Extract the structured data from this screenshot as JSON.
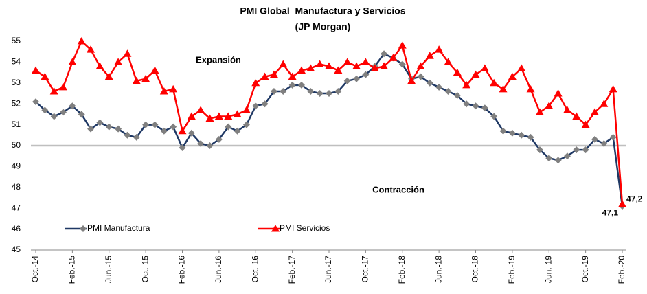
{
  "chart_data": {
    "type": "line",
    "title": "PMI Global  Manufactura y Servicios",
    "subtitle": "(JP Morgan)",
    "annotations": [
      "Expansión",
      "Contracción"
    ],
    "categories": [
      "Oct.-14",
      null,
      null,
      null,
      "Feb.-15",
      null,
      null,
      null,
      "Jun.-15",
      null,
      null,
      null,
      "Oct.-15",
      null,
      null,
      null,
      "Feb.-16",
      null,
      null,
      null,
      "Jun.-16",
      null,
      null,
      null,
      "Oct.-16",
      null,
      null,
      null,
      "Feb.-17",
      null,
      null,
      null,
      "Jun.-17",
      null,
      null,
      null,
      "Oct.-17",
      null,
      null,
      null,
      "Feb.-18",
      null,
      null,
      null,
      "Jun.-18",
      null,
      null,
      null,
      "Oct.-18",
      null,
      null,
      null,
      "Feb.-19",
      null,
      null,
      null,
      "Jun.-19",
      null,
      null,
      null,
      "Oct.-19",
      null,
      null,
      null,
      "Feb.-20"
    ],
    "series": [
      {
        "name": "PMI Manufactura",
        "color": "#1f3864",
        "marker_color": "#808080",
        "marker": "diamond",
        "values": [
          52.1,
          51.7,
          51.4,
          51.6,
          51.9,
          51.5,
          50.8,
          51.1,
          50.9,
          50.8,
          50.5,
          50.4,
          51.0,
          51.0,
          50.7,
          50.9,
          49.9,
          50.6,
          50.1,
          50.0,
          50.3,
          50.9,
          50.7,
          51.0,
          51.9,
          52.0,
          52.6,
          52.6,
          52.9,
          52.9,
          52.6,
          52.5,
          52.5,
          52.6,
          53.1,
          53.2,
          53.4,
          53.8,
          54.4,
          54.2,
          53.9,
          53.2,
          53.3,
          53.0,
          52.8,
          52.6,
          52.4,
          52.0,
          51.9,
          51.8,
          51.4,
          50.7,
          50.6,
          50.5,
          50.4,
          49.8,
          49.4,
          49.3,
          49.5,
          49.8,
          49.8,
          50.3,
          50.1,
          50.4,
          47.1
        ],
        "value_labels": [
          null,
          null,
          null,
          null,
          null,
          null,
          null,
          null,
          null,
          null,
          null,
          null,
          null,
          null,
          null,
          null,
          null,
          null,
          null,
          null,
          null,
          null,
          null,
          null,
          null,
          null,
          null,
          null,
          null,
          null,
          null,
          null,
          null,
          null,
          null,
          null,
          null,
          null,
          null,
          null,
          null,
          null,
          null,
          null,
          null,
          null,
          null,
          null,
          null,
          null,
          null,
          null,
          null,
          null,
          null,
          null,
          null,
          null,
          null,
          null,
          null,
          null,
          null,
          null,
          "47,1"
        ]
      },
      {
        "name": "PMI Servicios",
        "color": "#ff0000",
        "marker_color": "#ff0000",
        "marker": "triangle",
        "values": [
          53.6,
          53.3,
          52.6,
          52.8,
          54.0,
          55.0,
          54.6,
          53.8,
          53.3,
          54.0,
          54.4,
          53.1,
          53.2,
          53.6,
          52.6,
          52.7,
          50.7,
          51.4,
          51.7,
          51.3,
          51.4,
          51.4,
          51.5,
          51.7,
          53.0,
          53.3,
          53.4,
          53.9,
          53.3,
          53.6,
          53.7,
          53.9,
          53.8,
          53.6,
          54.0,
          53.8,
          54.0,
          53.7,
          53.8,
          54.2,
          54.8,
          53.1,
          53.8,
          54.3,
          54.6,
          54.0,
          53.5,
          52.9,
          53.4,
          53.7,
          53.0,
          52.7,
          53.3,
          53.7,
          52.7,
          51.6,
          51.9,
          52.5,
          51.7,
          51.4,
          51.0,
          51.6,
          52.0,
          52.7,
          47.2
        ],
        "value_labels": [
          null,
          null,
          null,
          null,
          null,
          null,
          null,
          null,
          null,
          null,
          null,
          null,
          null,
          null,
          null,
          null,
          null,
          null,
          null,
          null,
          null,
          null,
          null,
          null,
          null,
          null,
          null,
          null,
          null,
          null,
          null,
          null,
          null,
          null,
          null,
          null,
          null,
          null,
          null,
          null,
          null,
          null,
          null,
          null,
          null,
          null,
          null,
          null,
          null,
          null,
          null,
          null,
          null,
          null,
          null,
          null,
          null,
          null,
          null,
          null,
          null,
          null,
          null,
          null,
          "47,2"
        ]
      }
    ],
    "ylim": [
      45,
      55
    ],
    "yticks": [
      45,
      46,
      47,
      48,
      49,
      50,
      51,
      52,
      53,
      54,
      55
    ],
    "reference_line": 50,
    "reference_color": "#bfbfbf",
    "grid": false,
    "legend": "bottom-left"
  }
}
